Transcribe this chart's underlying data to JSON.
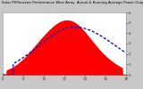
{
  "title_line1": "Solar PV/Inverter Performance West Array  Actual & Running Average Power Output",
  "bg_color": "#c8c8c8",
  "plot_bg_color": "#ffffff",
  "fill_color": "#ff0000",
  "line_color": "#0000cc",
  "grid_color": "#aaaaaa",
  "ylim": [
    0,
    6
  ],
  "xlim": [
    0,
    96
  ],
  "peak_x": 48,
  "peak_y": 5.2,
  "avg_peak_x": 56,
  "avg_peak_y": 4.6,
  "x_tick_positions": [
    0,
    16,
    32,
    48,
    64,
    80,
    96
  ],
  "x_tick_labels": [
    "6",
    "8",
    "10",
    "12",
    "14",
    "16",
    "18"
  ],
  "y_tick_positions": [
    0,
    1,
    2,
    3,
    4,
    5,
    6
  ],
  "y_tick_labels": [
    "0",
    "1",
    "2",
    "3",
    "4",
    "5",
    "6"
  ]
}
